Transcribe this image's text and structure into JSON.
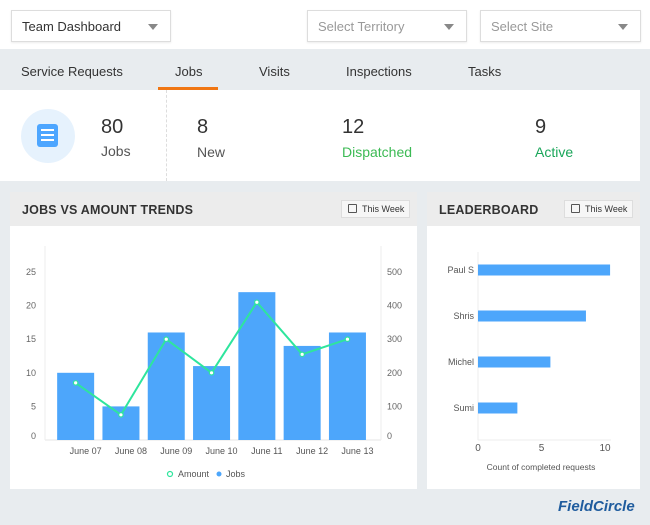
{
  "header": {
    "dashboard_select": "Team Dashboard",
    "territory_placeholder": "Select Territory",
    "site_placeholder": "Select Site"
  },
  "tabs": [
    {
      "label": "Service Requests"
    },
    {
      "label": "Jobs",
      "active": true
    },
    {
      "label": "Visits"
    },
    {
      "label": "Inspections"
    },
    {
      "label": "Tasks"
    }
  ],
  "stats": {
    "total": {
      "value": "80",
      "label": "Jobs"
    },
    "new": {
      "value": "8",
      "label": "New"
    },
    "dispatched": {
      "value": "12",
      "label": "Dispatched",
      "color": "#3cba54"
    },
    "active": {
      "value": "9",
      "label": "Active",
      "color": "#1aa65a"
    }
  },
  "trends": {
    "title": "JOBS VS AMOUNT TRENDS",
    "range": "This Week"
  },
  "leaderboard": {
    "title": "LEADERBOARD",
    "range": "This Week"
  },
  "logo": "FieldCircle",
  "chart_data": [
    {
      "type": "bar+line",
      "categories": [
        "June 07",
        "June 08",
        "June 09",
        "June 10",
        "June 11",
        "June 12",
        "June 13"
      ],
      "series": [
        {
          "name": "Jobs",
          "type": "bar",
          "axis": "left",
          "color": "#4da6fb",
          "values": [
            10,
            5,
            16,
            11,
            22,
            14,
            16
          ]
        },
        {
          "name": "Amount",
          "type": "line",
          "axis": "right",
          "color": "#2ee59d",
          "values": [
            170,
            75,
            300,
            200,
            410,
            255,
            300
          ]
        }
      ],
      "yleft": {
        "ticks": [
          "0",
          "5",
          "10",
          "15",
          "20",
          "25"
        ],
        "lim": [
          0,
          25
        ]
      },
      "yright": {
        "ticks": [
          "0",
          "100",
          "200",
          "300",
          "400",
          "500"
        ],
        "lim": [
          0,
          500
        ]
      },
      "legend": "bottom",
      "grid": false
    },
    {
      "type": "bar",
      "orientation": "horizontal",
      "categories": [
        "Paul S",
        "Shris",
        "Michel",
        "Sumi"
      ],
      "values": [
        10.4,
        8.5,
        5.7,
        3.1
      ],
      "color": "#4da6fb",
      "xlabel": "Count of completed requests",
      "xticks": [
        "0",
        "5",
        "10"
      ],
      "xlim": [
        0,
        10
      ],
      "grid": false
    }
  ]
}
